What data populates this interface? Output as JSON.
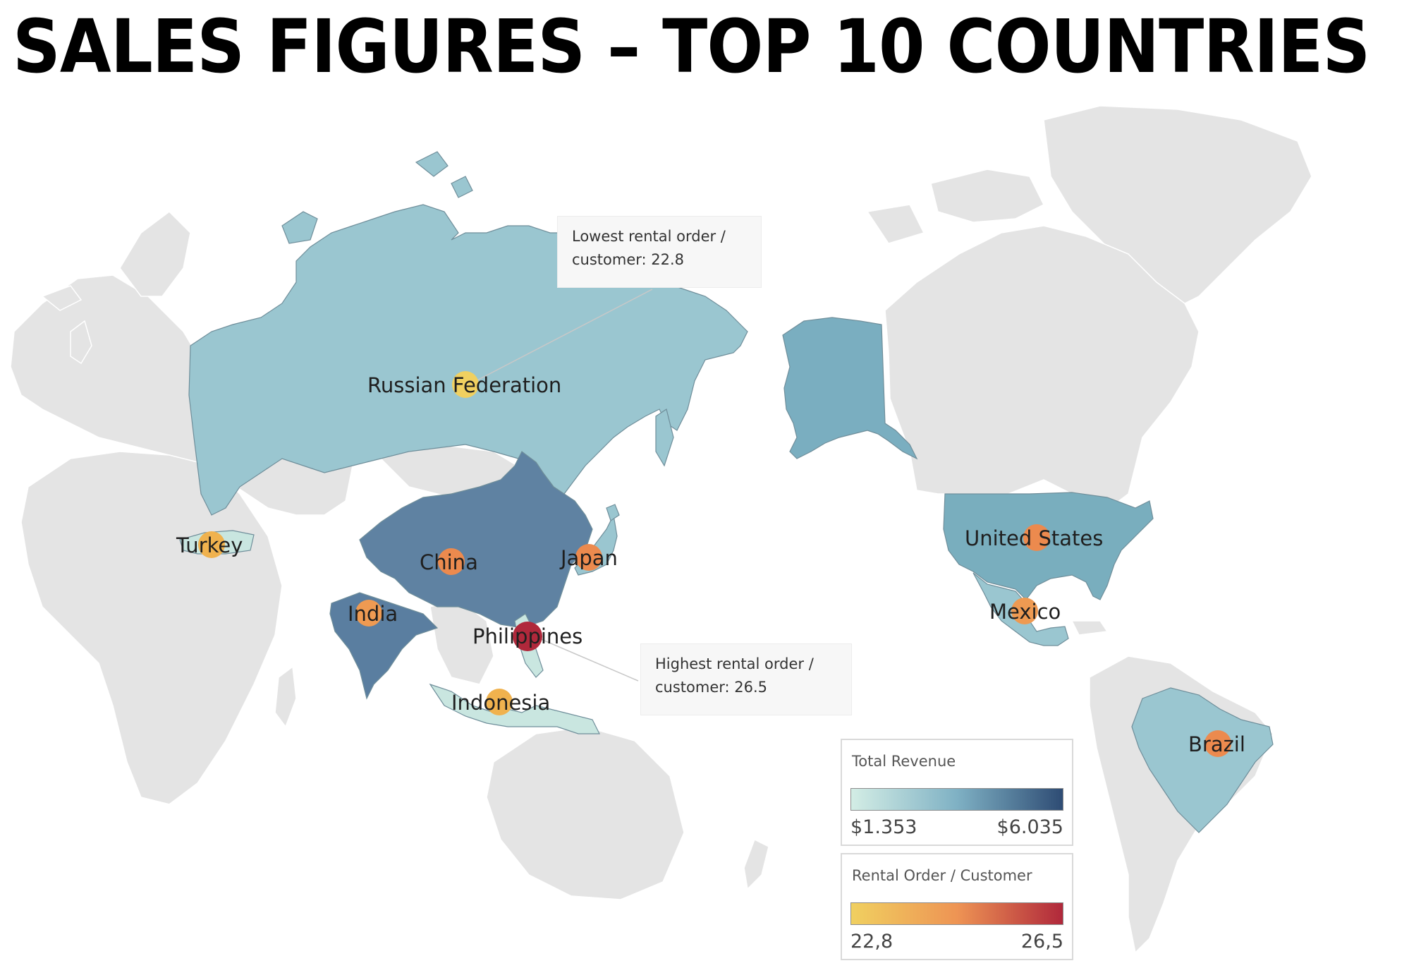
{
  "title": "SALES FIGURES – TOP 10 COUNTRIES",
  "colors": {
    "background": "#ffffff",
    "land": "#e4e4e4",
    "border": "#ffffff",
    "ocean": "#ffffff",
    "revenue_low": "#c9e6e0",
    "revenue_mid": "#8fc0cc",
    "revenue_high": "#3f5f86",
    "order_low": "#f0d060",
    "order_mid": "#ee9a52",
    "order_high": "#b0283b"
  },
  "countries": [
    {
      "name": "Russian Federation",
      "revenue_shade": "light-blue",
      "order_shade": "yellow"
    },
    {
      "name": "Turkey",
      "revenue_shade": "pale-teal",
      "order_shade": "light-orange"
    },
    {
      "name": "China",
      "revenue_shade": "dark-blue",
      "order_shade": "orange"
    },
    {
      "name": "Japan",
      "revenue_shade": "light-blue",
      "order_shade": "orange"
    },
    {
      "name": "India",
      "revenue_shade": "dark-blue",
      "order_shade": "orange"
    },
    {
      "name": "Philippines",
      "revenue_shade": "pale-teal",
      "order_shade": "dark-red"
    },
    {
      "name": "Indonesia",
      "revenue_shade": "pale-teal",
      "order_shade": "light-orange"
    },
    {
      "name": "United States",
      "revenue_shade": "blue",
      "order_shade": "orange"
    },
    {
      "name": "Mexico",
      "revenue_shade": "light-blue",
      "order_shade": "orange"
    },
    {
      "name": "Brazil",
      "revenue_shade": "light-blue",
      "order_shade": "orange"
    }
  ],
  "annotations": {
    "lowest": {
      "line1": "Lowest rental order /",
      "line2": "customer: 22.8"
    },
    "highest": {
      "line1": "Highest rental order /",
      "line2": "customer: 26.5"
    }
  },
  "legends": {
    "revenue": {
      "title": "Total Revenue",
      "min": "$1.353",
      "max": "$6.035",
      "color_from": "#d3ede5",
      "color_mid": "#7fb1c4",
      "color_to": "#2e4c74"
    },
    "rental": {
      "title": "Rental Order / Customer",
      "min": "22,8",
      "max": "26,5",
      "color_from": "#f0d060",
      "color_mid": "#ee9454",
      "color_to": "#b0283b"
    }
  }
}
